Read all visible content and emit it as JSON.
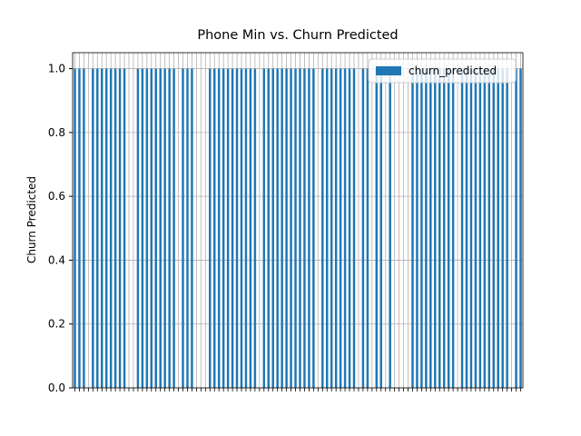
{
  "chart_data": {
    "type": "bar",
    "title": "Phone Min vs. Churn Predicted",
    "ylabel": "Churn Predicted",
    "categories": [
      null,
      null,
      null,
      null,
      null,
      null,
      null,
      null,
      null,
      null,
      null,
      null,
      null,
      null,
      null,
      null,
      null,
      null,
      null,
      null,
      null,
      null,
      null,
      null,
      null,
      null,
      null,
      null,
      null,
      null,
      null,
      null,
      null,
      null,
      null,
      null,
      null,
      null,
      null,
      null,
      null,
      null,
      null,
      null,
      null,
      null,
      null,
      null,
      null,
      null,
      null,
      null,
      null,
      null,
      null,
      null,
      null,
      null,
      null,
      null,
      null,
      null,
      null,
      null,
      null,
      null,
      null,
      null,
      null,
      null,
      null,
      null,
      null,
      null,
      null,
      null,
      null,
      null,
      null,
      null,
      null,
      null,
      null,
      null,
      null,
      null,
      null,
      null,
      null,
      null,
      null,
      null,
      null,
      null,
      null,
      null,
      null,
      null,
      null,
      null
    ],
    "series": [
      {
        "name": "churn_predicted",
        "color": "#1f77b4",
        "values": [
          1,
          1,
          1,
          0,
          1,
          1,
          1,
          1,
          1,
          1,
          1,
          1,
          0,
          0,
          1,
          1,
          1,
          1,
          1,
          1,
          1,
          1,
          1,
          0,
          1,
          1,
          1,
          0,
          0,
          0,
          1,
          1,
          1,
          1,
          1,
          1,
          1,
          1,
          1,
          1,
          1,
          0,
          1,
          1,
          1,
          1,
          1,
          1,
          1,
          1,
          1,
          1,
          1,
          1,
          0,
          1,
          1,
          1,
          1,
          1,
          1,
          1,
          1,
          0,
          1,
          1,
          0,
          1,
          1,
          0,
          1,
          0,
          0,
          0,
          0,
          1,
          1,
          1,
          1,
          1,
          1,
          1,
          1,
          1,
          1,
          0,
          1,
          1,
          1,
          1,
          1,
          1,
          1,
          1,
          1,
          1,
          1,
          0,
          1,
          1
        ]
      }
    ],
    "ylim": [
      0,
      1.05
    ],
    "yticks": [
      {
        "value": 0,
        "label": "0.0"
      },
      {
        "value": 0.2,
        "label": "0.2"
      },
      {
        "value": 0.4,
        "label": "0.4"
      },
      {
        "value": 0.6,
        "label": "0.6"
      },
      {
        "value": 0.8,
        "label": "0.8"
      },
      {
        "value": 1,
        "label": "1.0"
      }
    ],
    "grid": true,
    "legend": "upper right"
  }
}
